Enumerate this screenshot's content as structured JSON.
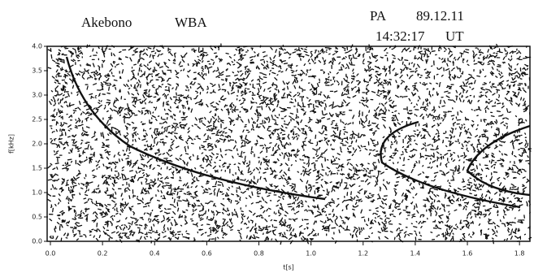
{
  "chart_data": {
    "type": "spectrogram",
    "title": "Akebono",
    "subtitle": "WBA",
    "station": "PA",
    "date": "89.12.11",
    "time": "14:32:17",
    "time_zone": "UT",
    "xlabel": "t[s]",
    "ylabel": "f[kHz]",
    "xlim": [
      0,
      1.84
    ],
    "ylim": [
      0,
      4
    ],
    "xticks": [
      {
        "value": 0,
        "label": "0.0"
      },
      0.2,
      0.4,
      0.6,
      0.8,
      {
        "value": 1,
        "label": "1.0"
      },
      1.2,
      1.4,
      1.6,
      1.8
    ],
    "yticks": [
      {
        "value": 0,
        "label": "0.0"
      },
      0.5,
      {
        "value": 1,
        "label": "1.0"
      },
      1.5,
      {
        "value": 2,
        "label": "2.0"
      },
      2.5,
      {
        "value": 3,
        "label": "3.0"
      },
      3.5,
      {
        "value": 4,
        "label": "4.0"
      }
    ],
    "color": "#111111"
  }
}
